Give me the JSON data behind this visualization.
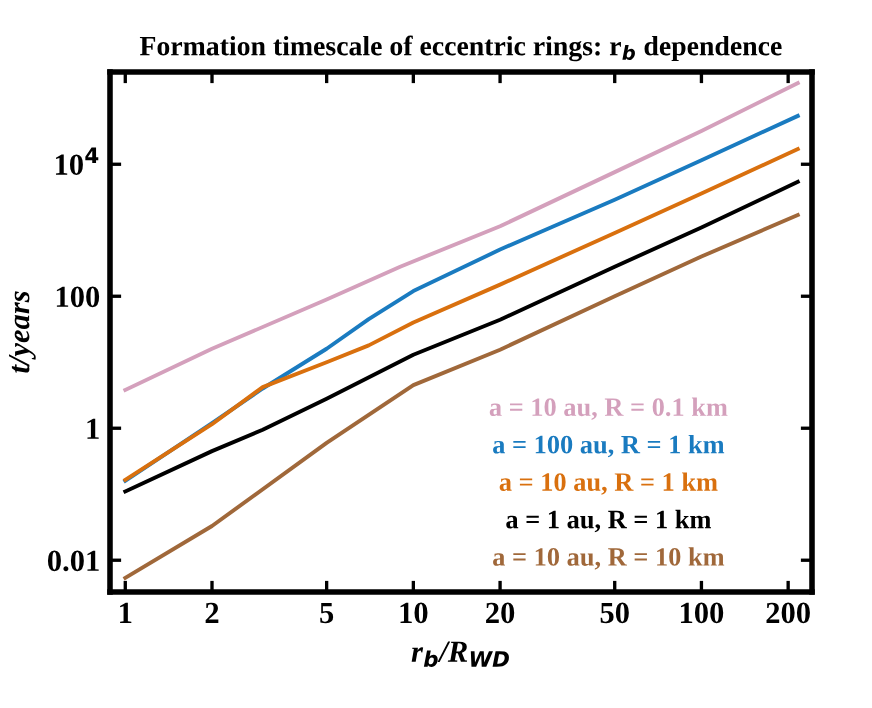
{
  "chart_data": {
    "type": "line",
    "title": "Formation timescale of eccentric rings: r$_{b}$ dependence",
    "xlabel": "r$_{b}$/R$_{WD}$",
    "ylabel": "t/years",
    "log": "xy",
    "xlim": [
      0.885,
      242
    ],
    "ylim": [
      0.0033,
      250000
    ],
    "xticks": [
      1,
      2,
      5,
      10,
      20,
      50,
      100,
      200
    ],
    "yticks": [
      0.01,
      1,
      100,
      {
        "value": 10000,
        "label": "10$^{4}$"
      }
    ],
    "legend": "bottom right",
    "grid": false,
    "series": [
      {
        "name": "a = 10 au, R = 0.1 km",
        "color": "#d4a0bc",
        "x": [
          1,
          2,
          5,
          9,
          20,
          50,
          100,
          216
        ],
        "values": [
          3.8,
          16,
          89,
          280,
          1150,
          7600,
          32000,
          170000
        ]
      },
      {
        "name": "a = 100 au, R = 1 km",
        "color": "#1a7bc0",
        "x": [
          1,
          2,
          3,
          5,
          7,
          10,
          15,
          20,
          30,
          50,
          100,
          216
        ],
        "values": [
          0.16,
          1.2,
          4,
          16,
          45,
          120,
          280,
          510,
          1100,
          2900,
          11500,
          54000
        ]
      },
      {
        "name": "a = 10 au, R = 1 km",
        "color": "#d9700e",
        "x": [
          1,
          2,
          3,
          5,
          7,
          10,
          20,
          50,
          100,
          216
        ],
        "values": [
          0.165,
          1.15,
          4.2,
          10,
          18,
          40,
          150,
          910,
          3600,
          17000
        ]
      },
      {
        "name": "a = 1 au, R = 1 km",
        "color": "#000000",
        "x": [
          1,
          2,
          3,
          5,
          10,
          20,
          50,
          100,
          216
        ],
        "values": [
          0.11,
          0.45,
          0.95,
          2.8,
          13,
          44,
          280,
          1100,
          5400
        ]
      },
      {
        "name": "a = 10 au, R = 10 km",
        "color": "#a0683a",
        "x": [
          1,
          2,
          5,
          10,
          20,
          50,
          100,
          216
        ],
        "values": [
          0.0054,
          0.033,
          0.6,
          4.5,
          15.5,
          100,
          400,
          1700
        ]
      }
    ]
  }
}
